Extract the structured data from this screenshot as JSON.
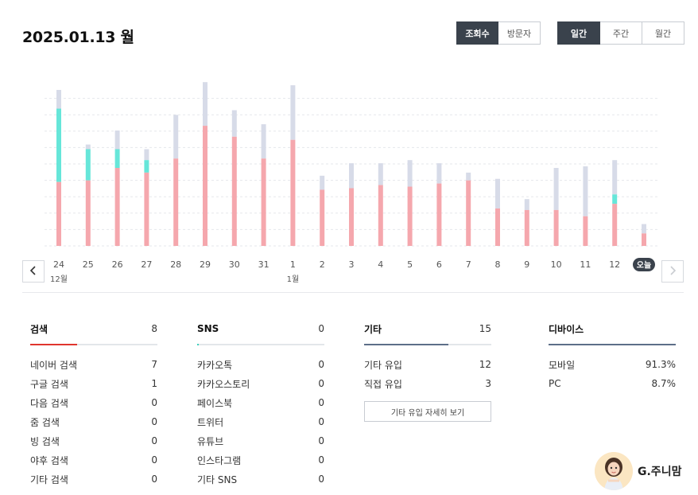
{
  "header": {
    "date_title": "2025.01.13 월"
  },
  "metric_toggle": {
    "options": [
      "조회수",
      "방문자"
    ],
    "selected": "조회수"
  },
  "period_toggle": {
    "options": [
      "일간",
      "주간",
      "월간"
    ],
    "selected": "일간"
  },
  "chart_data": {
    "type": "bar",
    "categories": [
      "24",
      "25",
      "26",
      "27",
      "28",
      "29",
      "30",
      "31",
      "1",
      "2",
      "3",
      "4",
      "5",
      "6",
      "7",
      "8",
      "9",
      "10",
      "11",
      "12",
      "오늘"
    ],
    "month_labels": [
      "12월",
      "1월"
    ],
    "series": [
      {
        "values": [
          41,
          42,
          50,
          47,
          56,
          77,
          70,
          56,
          68,
          36,
          37,
          39,
          38,
          40,
          42,
          24,
          23,
          23,
          19,
          27,
          8
        ]
      },
      {
        "values": [
          47,
          20,
          12,
          8,
          0,
          0,
          0,
          0,
          0,
          0,
          0,
          0,
          0,
          0,
          0,
          0,
          0,
          0,
          0,
          6,
          0
        ]
      },
      {
        "values": [
          100,
          65,
          74,
          62,
          84,
          105,
          87,
          78,
          103,
          45,
          53,
          53,
          55,
          53,
          47,
          43,
          30,
          50,
          51,
          55,
          14
        ]
      }
    ],
    "colors": {
      "pink": "#f5a7ad",
      "teal": "#66e6d9",
      "gray": "#d7dbe8",
      "today_badge": "#3a424c"
    },
    "grid": true
  },
  "navigation": {
    "prev_icon": "chevron-left-icon",
    "next_icon": "chevron-right-icon"
  },
  "panels": {
    "search": {
      "title": "검색",
      "count": "8",
      "accent": "#e0352e",
      "fill_percent": 37,
      "rows": [
        {
          "label": "네이버 검색",
          "value": "7"
        },
        {
          "label": "구글 검색",
          "value": "1"
        },
        {
          "label": "다음 검색",
          "value": "0"
        },
        {
          "label": "줌 검색",
          "value": "0"
        },
        {
          "label": "빙 검색",
          "value": "0"
        },
        {
          "label": "야후 검색",
          "value": "0"
        },
        {
          "label": "기타 검색",
          "value": "0"
        }
      ]
    },
    "sns": {
      "title": "SNS",
      "count": "0",
      "accent": "#3fd0bd",
      "fill_percent": 1,
      "rows": [
        {
          "label": "카카오톡",
          "value": "0"
        },
        {
          "label": "카카오스토리",
          "value": "0"
        },
        {
          "label": "페이스북",
          "value": "0"
        },
        {
          "label": "트위터",
          "value": "0"
        },
        {
          "label": "유튜브",
          "value": "0"
        },
        {
          "label": "인스타그램",
          "value": "0"
        },
        {
          "label": "기타 SNS",
          "value": "0"
        }
      ]
    },
    "etc": {
      "title": "기타",
      "count": "15",
      "accent": "#5d6f88",
      "fill_percent": 66,
      "rows": [
        {
          "label": "기타 유입",
          "value": "12"
        },
        {
          "label": "직접 유입",
          "value": "3"
        }
      ],
      "detail_button": "기타 유입 자세히 보기"
    },
    "device": {
      "title": "디바이스",
      "accent": "#5d6f88",
      "fill_percent": 100,
      "rows": [
        {
          "label": "모바일",
          "value": "91.3%"
        },
        {
          "label": "PC",
          "value": "8.7%"
        }
      ]
    }
  },
  "profile": {
    "name": "G.주니맘",
    "avatar_icon": "avatar-icon"
  }
}
